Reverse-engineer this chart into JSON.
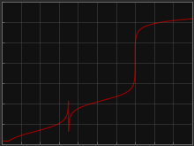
{
  "background_color": "#2a2a2a",
  "plot_bg_color": "#111111",
  "grid_color": "#666666",
  "line_color": "#990000",
  "spine_color": "#777777",
  "tick_color": "#777777",
  "xlim": [
    0,
    10
  ],
  "ylim": [
    0,
    14
  ],
  "x_ticks": [
    0,
    1,
    2,
    3,
    4,
    5,
    6,
    7,
    8,
    9,
    10
  ],
  "y_ticks": [
    0,
    2,
    4,
    6,
    8,
    10,
    12,
    14
  ],
  "figsize": [
    2.2,
    1.65
  ],
  "dpi": 100,
  "pKa1": 1.25,
  "pKa2": 4.27,
  "ep1_vol": 3.5,
  "ep2_vol": 7.0,
  "total_vol": 10.0,
  "linewidth": 0.85
}
